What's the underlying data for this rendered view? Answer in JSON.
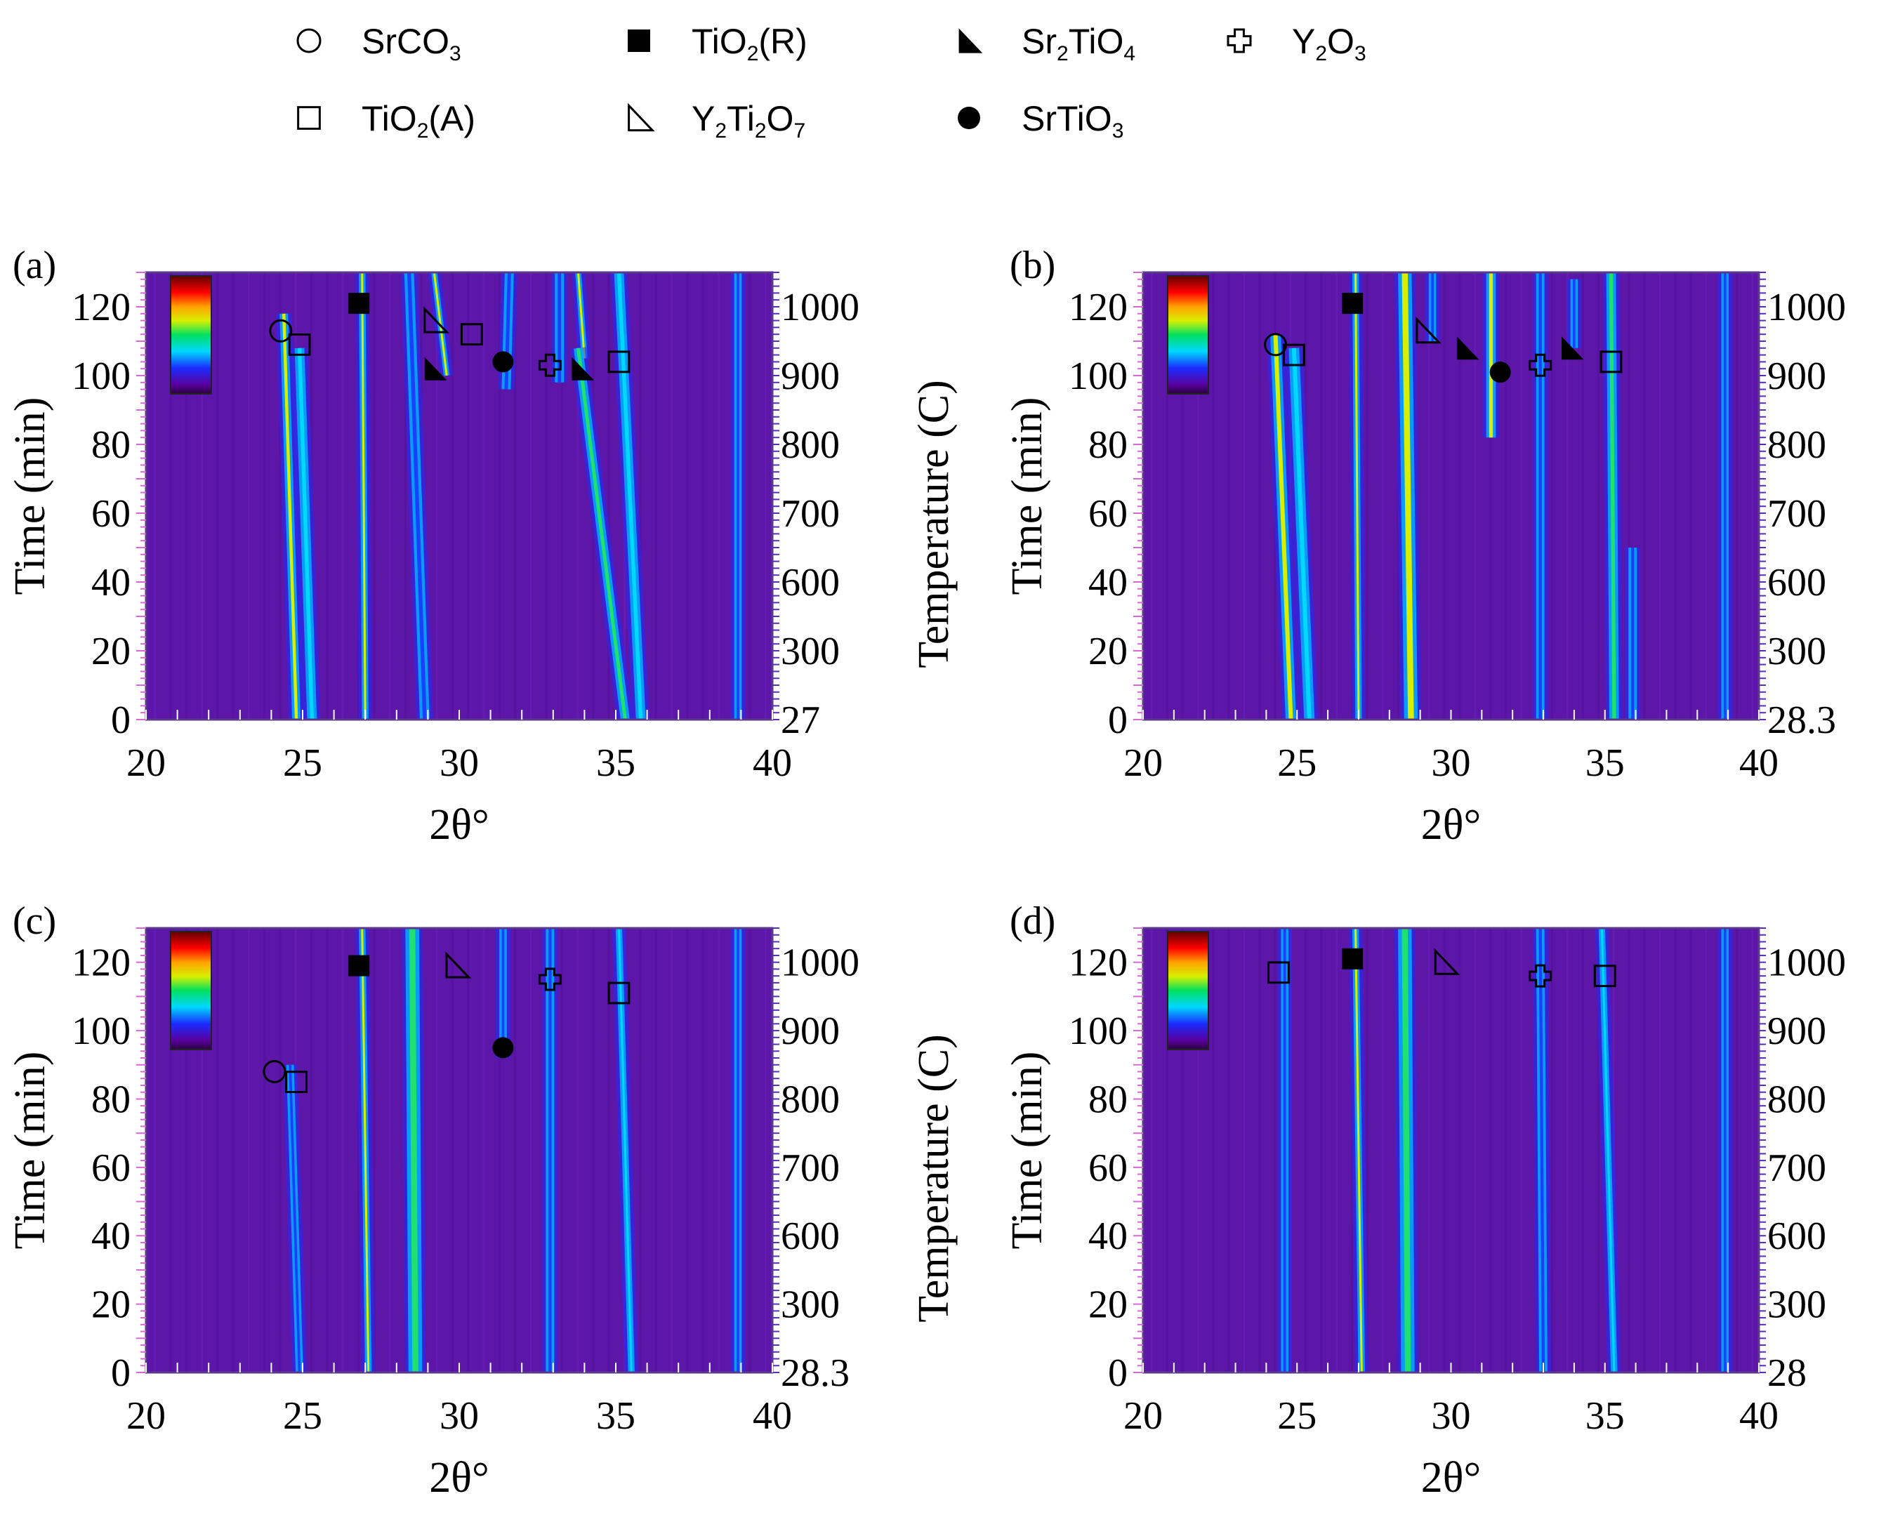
{
  "legend": {
    "items": [
      {
        "key": "srco3",
        "marker": "open-circle",
        "text": "SrCO",
        "sub": "3",
        "suffix": ""
      },
      {
        "key": "tio2r",
        "marker": "filled-square",
        "text": "TiO",
        "sub": "2",
        "suffix": "(R)"
      },
      {
        "key": "sr2tio4",
        "marker": "filled-triangle",
        "text": "Sr",
        "sub": "2",
        "text2": "TiO",
        "sub2": "4"
      },
      {
        "key": "y2o3",
        "marker": "open-cross",
        "text": "Y",
        "sub": "2",
        "text2": "O",
        "sub2": "3"
      },
      {
        "key": "tio2a",
        "marker": "open-square",
        "text": "TiO",
        "sub": "2",
        "suffix": "(A)"
      },
      {
        "key": "y2ti2o7",
        "marker": "open-triangle",
        "text": "Y",
        "sub": "2",
        "text2": "Ti",
        "sub2": "2",
        "text3": "O",
        "sub3": "7"
      },
      {
        "key": "srtio3",
        "marker": "filled-circle",
        "text": "SrTiO",
        "sub": "3",
        "suffix": ""
      }
    ]
  },
  "chart_data": [
    {
      "type": "heatmap",
      "panel_label": "(a)",
      "xlabel": "2θ°",
      "ylabel": "Time (min)",
      "y2label": "Temperature (C)",
      "xlim": [
        20,
        40
      ],
      "ylim": [
        0,
        130
      ],
      "x_ticks": [
        "20",
        "25",
        "30",
        "35",
        "40"
      ],
      "y_ticks": [
        "0",
        "20",
        "40",
        "60",
        "80",
        "100",
        "120"
      ],
      "temp_ticks": [
        "27",
        "300",
        "600",
        "700",
        "800",
        "900",
        "1000"
      ],
      "peaks": [
        {
          "x0": 24.8,
          "x1": 24.4,
          "ystart": 0,
          "yend": 118,
          "w": 0.18,
          "i": "yellow"
        },
        {
          "x0": 25.3,
          "x1": 24.9,
          "ystart": 0,
          "yend": 108,
          "w": 0.22,
          "i": "cyan"
        },
        {
          "x0": 27.0,
          "x1": 26.9,
          "ystart": 0,
          "yend": 130,
          "w": 0.12,
          "i": "yellow"
        },
        {
          "x0": 28.9,
          "x1": 28.4,
          "ystart": 0,
          "yend": 130,
          "w": 0.22,
          "i": "blue"
        },
        {
          "x0": 29.6,
          "x1": 29.2,
          "ystart": 100,
          "yend": 130,
          "w": 0.1,
          "i": "yellow"
        },
        {
          "x0": 31.5,
          "x1": 31.6,
          "ystart": 96,
          "yend": 130,
          "w": 0.2,
          "i": "blue"
        },
        {
          "x0": 33.2,
          "x1": 33.2,
          "ystart": 98,
          "yend": 130,
          "w": 0.2,
          "i": "blue"
        },
        {
          "x0": 34.0,
          "x1": 33.8,
          "ystart": 105,
          "yend": 130,
          "w": 0.1,
          "i": "yellow"
        },
        {
          "x0": 35.3,
          "x1": 33.8,
          "ystart": 0,
          "yend": 108,
          "w": 0.2,
          "i": "green"
        },
        {
          "x0": 35.8,
          "x1": 35.1,
          "ystart": 0,
          "yend": 130,
          "w": 0.22,
          "i": "cyan"
        },
        {
          "x0": 38.9,
          "x1": 38.9,
          "ystart": 0,
          "yend": 130,
          "w": 0.15,
          "i": "blue"
        }
      ],
      "markers": [
        {
          "m": "open-circle",
          "x": 24.3,
          "y": 113
        },
        {
          "m": "open-square",
          "x": 24.9,
          "y": 109
        },
        {
          "m": "filled-square",
          "x": 26.8,
          "y": 121
        },
        {
          "m": "open-triangle",
          "x": 29.2,
          "y": 116
        },
        {
          "m": "filled-triangle",
          "x": 29.2,
          "y": 102
        },
        {
          "m": "open-square",
          "x": 30.4,
          "y": 112
        },
        {
          "m": "filled-circle",
          "x": 31.4,
          "y": 104
        },
        {
          "m": "open-cross",
          "x": 32.9,
          "y": 103
        },
        {
          "m": "filled-triangle",
          "x": 33.9,
          "y": 102
        },
        {
          "m": "open-square",
          "x": 35.1,
          "y": 104
        }
      ]
    },
    {
      "type": "heatmap",
      "panel_label": "(b)",
      "xlabel": "2θ°",
      "ylabel": "Time (min)",
      "y2label": "Temperature (C)",
      "xlim": [
        20,
        40
      ],
      "ylim": [
        0,
        130
      ],
      "x_ticks": [
        "20",
        "25",
        "30",
        "35",
        "40"
      ],
      "y_ticks": [
        "0",
        "20",
        "40",
        "60",
        "80",
        "100",
        "120"
      ],
      "temp_ticks": [
        "28.3",
        "300",
        "600",
        "700",
        "800",
        "900",
        "1000"
      ],
      "peaks": [
        {
          "x0": 24.8,
          "x1": 24.3,
          "ystart": 0,
          "yend": 112,
          "w": 0.25,
          "i": "yellow"
        },
        {
          "x0": 25.4,
          "x1": 24.9,
          "ystart": 0,
          "yend": 108,
          "w": 0.25,
          "i": "cyan"
        },
        {
          "x0": 27.0,
          "x1": 26.9,
          "ystart": 0,
          "yend": 130,
          "w": 0.12,
          "i": "yellow"
        },
        {
          "x0": 28.7,
          "x1": 28.5,
          "ystart": 0,
          "yend": 130,
          "w": 0.35,
          "i": "yellow"
        },
        {
          "x0": 29.4,
          "x1": 29.4,
          "ystart": 110,
          "yend": 130,
          "w": 0.15,
          "i": "blue"
        },
        {
          "x0": 31.3,
          "x1": 31.3,
          "ystart": 82,
          "yend": 130,
          "w": 0.22,
          "i": "yellow"
        },
        {
          "x0": 32.9,
          "x1": 32.9,
          "ystart": 0,
          "yend": 130,
          "w": 0.18,
          "i": "blue"
        },
        {
          "x0": 34.0,
          "x1": 34.0,
          "ystart": 108,
          "yend": 128,
          "w": 0.15,
          "i": "blue"
        },
        {
          "x0": 35.3,
          "x1": 35.2,
          "ystart": 0,
          "yend": 130,
          "w": 0.22,
          "i": "green"
        },
        {
          "x0": 35.9,
          "x1": 35.9,
          "ystart": 0,
          "yend": 50,
          "w": 0.18,
          "i": "blue"
        },
        {
          "x0": 38.9,
          "x1": 38.9,
          "ystart": 0,
          "yend": 130,
          "w": 0.15,
          "i": "blue"
        }
      ],
      "markers": [
        {
          "m": "open-circle",
          "x": 24.3,
          "y": 109
        },
        {
          "m": "open-square",
          "x": 24.9,
          "y": 106
        },
        {
          "m": "filled-square",
          "x": 26.8,
          "y": 121
        },
        {
          "m": "open-triangle",
          "x": 29.2,
          "y": 113
        },
        {
          "m": "filled-triangle",
          "x": 30.5,
          "y": 108
        },
        {
          "m": "filled-circle",
          "x": 31.6,
          "y": 101
        },
        {
          "m": "open-cross",
          "x": 32.9,
          "y": 103
        },
        {
          "m": "filled-triangle",
          "x": 33.9,
          "y": 108
        },
        {
          "m": "open-square",
          "x": 35.2,
          "y": 104
        }
      ]
    },
    {
      "type": "heatmap",
      "panel_label": "(c)",
      "xlabel": "2θ°",
      "ylabel": "Time (min)",
      "y2label": "Temperature (C)",
      "xlim": [
        20,
        40
      ],
      "ylim": [
        0,
        130
      ],
      "x_ticks": [
        "20",
        "25",
        "30",
        "35",
        "40"
      ],
      "y_ticks": [
        "0",
        "20",
        "40",
        "60",
        "80",
        "100",
        "120"
      ],
      "temp_ticks": [
        "28.3",
        "300",
        "600",
        "700",
        "800",
        "900",
        "1000"
      ],
      "peaks": [
        {
          "x0": 24.9,
          "x1": 24.6,
          "ystart": 0,
          "yend": 90,
          "w": 0.15,
          "i": "blue"
        },
        {
          "x0": 27.1,
          "x1": 26.9,
          "ystart": 0,
          "yend": 130,
          "w": 0.12,
          "i": "yellow"
        },
        {
          "x0": 28.6,
          "x1": 28.5,
          "ystart": 0,
          "yend": 130,
          "w": 0.35,
          "i": "green"
        },
        {
          "x0": 31.4,
          "x1": 31.4,
          "ystart": 92,
          "yend": 130,
          "w": 0.15,
          "i": "blue"
        },
        {
          "x0": 32.9,
          "x1": 32.9,
          "ystart": 0,
          "yend": 130,
          "w": 0.18,
          "i": "blue"
        },
        {
          "x0": 35.5,
          "x1": 35.1,
          "ystart": 0,
          "yend": 130,
          "w": 0.12,
          "i": "cyan"
        },
        {
          "x0": 38.9,
          "x1": 38.9,
          "ystart": 0,
          "yend": 130,
          "w": 0.15,
          "i": "blue"
        }
      ],
      "markers": [
        {
          "m": "open-circle",
          "x": 24.1,
          "y": 88
        },
        {
          "m": "open-square",
          "x": 24.8,
          "y": 85
        },
        {
          "m": "filled-square",
          "x": 26.8,
          "y": 119
        },
        {
          "m": "open-triangle",
          "x": 29.9,
          "y": 119
        },
        {
          "m": "filled-circle",
          "x": 31.4,
          "y": 95
        },
        {
          "m": "open-cross",
          "x": 32.9,
          "y": 115
        },
        {
          "m": "open-square",
          "x": 35.1,
          "y": 111
        }
      ]
    },
    {
      "type": "heatmap",
      "panel_label": "(d)",
      "xlabel": "2θ°",
      "ylabel": "Time (min)",
      "y2label": "Temperature (C)",
      "xlim": [
        20,
        40
      ],
      "ylim": [
        0,
        130
      ],
      "x_ticks": [
        "20",
        "25",
        "30",
        "35",
        "40"
      ],
      "y_ticks": [
        "0",
        "20",
        "40",
        "60",
        "80",
        "100",
        "120"
      ],
      "temp_ticks": [
        "28",
        "300",
        "600",
        "700",
        "800",
        "900",
        "1000"
      ],
      "peaks": [
        {
          "x0": 24.6,
          "x1": 24.6,
          "ystart": 0,
          "yend": 130,
          "w": 0.15,
          "i": "blue"
        },
        {
          "x0": 27.1,
          "x1": 26.9,
          "ystart": 0,
          "yend": 130,
          "w": 0.12,
          "i": "yellow"
        },
        {
          "x0": 28.6,
          "x1": 28.5,
          "ystart": 0,
          "yend": 130,
          "w": 0.35,
          "i": "green"
        },
        {
          "x0": 33.0,
          "x1": 32.9,
          "ystart": 0,
          "yend": 130,
          "w": 0.18,
          "i": "blue"
        },
        {
          "x0": 35.3,
          "x1": 34.9,
          "ystart": 0,
          "yend": 130,
          "w": 0.12,
          "i": "cyan"
        },
        {
          "x0": 38.9,
          "x1": 38.9,
          "ystart": 0,
          "yend": 130,
          "w": 0.15,
          "i": "blue"
        }
      ],
      "markers": [
        {
          "m": "open-square",
          "x": 24.4,
          "y": 117
        },
        {
          "m": "filled-square",
          "x": 26.8,
          "y": 121
        },
        {
          "m": "open-triangle",
          "x": 29.8,
          "y": 120
        },
        {
          "m": "open-cross",
          "x": 32.9,
          "y": 116
        },
        {
          "m": "open-square",
          "x": 35.0,
          "y": 116
        }
      ]
    }
  ]
}
